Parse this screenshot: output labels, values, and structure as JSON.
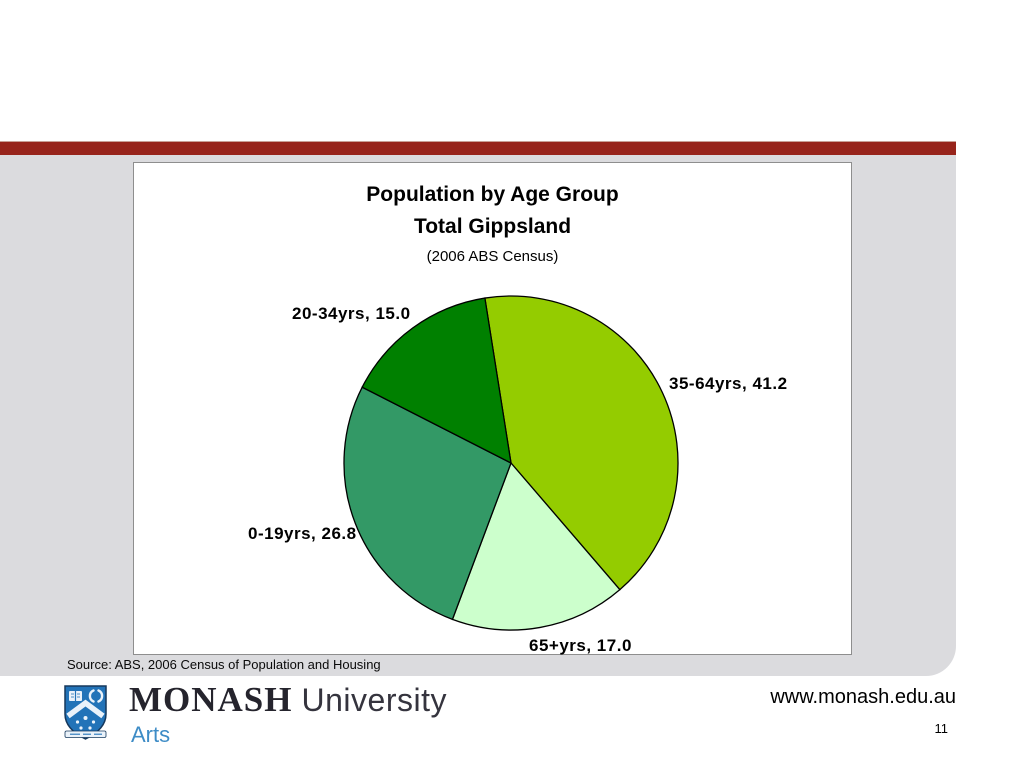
{
  "slide": {
    "accent_color": "#97241B",
    "panel_color": "#DBDBDE",
    "source_note": "Source: ABS, 2006 Census of Population and Housing",
    "footer": {
      "website": "www.monash.edu.au",
      "page_number": "11",
      "logo": {
        "wordmark": "MONASH",
        "institution": "University",
        "department": "Arts",
        "shield_icon": "monash-crest-shield",
        "shield_color": "#2273B8"
      }
    }
  },
  "chart_data": {
    "type": "pie",
    "title": "Population by Age Group",
    "subtitle": "Total Gippsland",
    "note": "(2006 ABS Census)",
    "legend_position": "none",
    "data_labels": "category-and-value-outside",
    "start_angle_deg": -9,
    "direction": "clockwise",
    "slices": [
      {
        "label": "35-64yrs",
        "value": 41.2,
        "color": "#94CC00"
      },
      {
        "label": "65+yrs",
        "value": 17.0,
        "color": "#CCFFCC"
      },
      {
        "label": "0-19yrs",
        "value": 26.8,
        "color": "#339966"
      },
      {
        "label": "20-34yrs",
        "value": 15.0,
        "color": "#008000"
      }
    ]
  }
}
